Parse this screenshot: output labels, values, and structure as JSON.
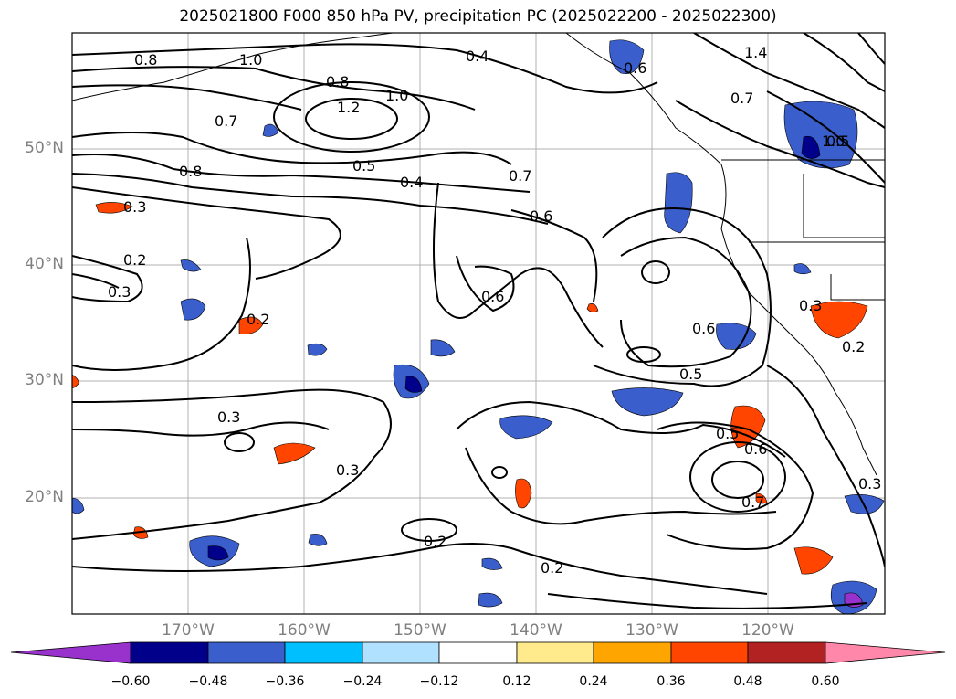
{
  "title": "2025021800 F000 850 hPa PV, precipitation PC (2025022200 - 2025022300)",
  "lat_labels": [
    "50°N",
    "40°N",
    "30°N",
    "20°N"
  ],
  "lon_labels": [
    "170°W",
    "160°W",
    "150°W",
    "140°W",
    "130°W",
    "120°W"
  ],
  "contour_labels": [
    "0.8",
    "1.0",
    "0.8",
    "1.2",
    "1.0",
    "0.7",
    "0.8",
    "0.5",
    "0.4",
    "0.3",
    "0.2",
    "0.3",
    "0.4",
    "0.6",
    "1.4",
    "0.7",
    "1.0",
    "0.7",
    "0.6",
    "0.6",
    "0.6",
    "0.5",
    "0.3",
    "0.5",
    "0.6",
    "0.7",
    "0.2",
    "0.2",
    "0.3",
    "0.3",
    "0.2",
    "0.3",
    "0.5",
    "0.2"
  ],
  "colorbar": {
    "ticks": [
      "−0.60",
      "−0.48",
      "−0.36",
      "−0.24",
      "−0.12",
      "0.12",
      "0.24",
      "0.36",
      "0.48",
      "0.60"
    ],
    "colors": [
      "#9932cc",
      "#00008b",
      "#3a5fcd",
      "#00bfff",
      "#b0e2ff",
      "#ffffff",
      "#ffeb8b",
      "#ffa500",
      "#ff4500",
      "#b22222",
      "#ff88aa"
    ]
  }
}
